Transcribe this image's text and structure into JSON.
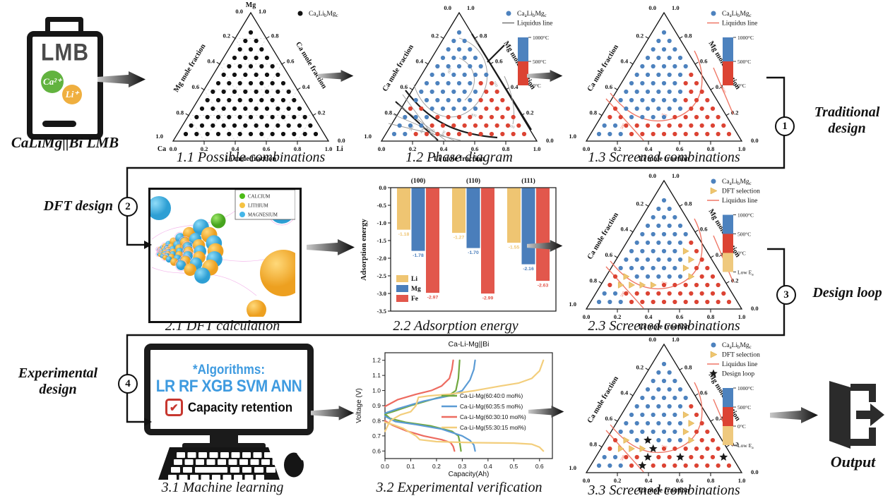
{
  "battery": {
    "label": "LMB",
    "ion1": "Ca²⁺",
    "ion2": "Li⁺",
    "ion1_color": "#62b33f",
    "ion2_color": "#efaf3f",
    "caption": "CaLiMg||Bi LMB"
  },
  "stages": {
    "traditional": {
      "num": "1",
      "title": "Traditional design"
    },
    "dft": {
      "num": "2",
      "title": "DFT design"
    },
    "loop": {
      "num": "3",
      "title": "Design loop"
    },
    "experimental": {
      "num": "4",
      "title": "Experimental design"
    },
    "output_label": "Output"
  },
  "dft_panel": {
    "caption": "2.1 DFT calculation",
    "legend": [
      {
        "label": "CALCIUM",
        "color": "#4cbb17"
      },
      {
        "label": "LITHIUM",
        "color": "#f5c242"
      },
      {
        "label": "MAGNESIUM",
        "color": "#45b6e8"
      }
    ]
  },
  "machine": {
    "caption": "3.1 Machine learning",
    "algorithms_title": "*Algorithms:",
    "algorithms": "LR RF XGB SVM ANN",
    "check_mark": "✔",
    "check_label": "Capacity retention"
  },
  "palette": {
    "K": "#111111",
    "B": "#4d82be",
    "R": "#dc4333",
    "Y": "#efc56f",
    "S": "#1a1a1a"
  },
  "chart_data": [
    {
      "id": "p11",
      "type": "ternary",
      "caption": "1.1 Possible combinations",
      "corner_top": "Mg",
      "corner_bl": "Ca",
      "corner_br": "Li",
      "left_axis": "Mg  mole fraction",
      "right_axis": "Ca  mole fraction",
      "bottom_axis": "Li  mole fraction",
      "apex_left": "0.0",
      "apex_right": "1.0",
      "left_ticks": [
        "0.2",
        "0.4",
        "0.6",
        "0.8"
      ],
      "left_bottom": "1.0",
      "right_ticks": [
        "0.8",
        "0.6",
        "0.4",
        "0.2"
      ],
      "right_bottom": "0.0",
      "bottom_ticks": [
        "0.0",
        "0.2",
        "0.4",
        "0.6",
        "0.8",
        "1.0"
      ],
      "grid": true,
      "legend": [
        {
          "marker": "dot",
          "color": "#111111",
          "label": "Ca_aLi_bMg_c"
        }
      ],
      "rows": [
        "K",
        "KK",
        "KKK",
        "KKKK",
        "KKKKK",
        "KKKKKK",
        "KKKKKKK",
        "KKKKKKKK",
        "KKKKKKKKK",
        "KKKKKKKKKK",
        "KKKKKKKKKKK",
        "KKKKKKKKKKKK",
        "KKKKKKKKKKKKK"
      ]
    },
    {
      "id": "p12",
      "type": "ternary",
      "caption": "1.2 Phase diagram",
      "left_axis": "Ca  mole fraction",
      "right_axis": "Mg  mole fraction",
      "bottom_axis": "Li  mole fraction",
      "apex_left": "0.0",
      "apex_right": "1.0",
      "left_ticks": [
        "0.2",
        "0.4",
        "0.6",
        "0.8"
      ],
      "left_bottom": "1.0",
      "right_ticks": [
        "0.8",
        "0.6",
        "0.4",
        "0.2"
      ],
      "right_bottom": "0.0",
      "bottom_ticks": [
        "0.0",
        "0.2",
        "0.4",
        "0.6",
        "0.8",
        "1.0"
      ],
      "legend": [
        {
          "marker": "dot",
          "color": "#4d82be",
          "label": "Ca_aLi_bMg_c"
        },
        {
          "marker": "line",
          "color": "#777777",
          "label": "Liquidus line"
        }
      ],
      "colorbar": {
        "segments": [
          "#4d82be",
          "#dc4333"
        ],
        "labels": [
          "1000°C",
          "500°C",
          "0°C"
        ]
      },
      "liquidus_color": "#999999",
      "liquidus_paths": [
        "M150,52 C196,66 202,122 168,152 C136,179 98,157 86,118",
        "M150,80 C176,92 178,122 158,140",
        "M214,106 C226,132 230,156 226,174",
        "M70,132 L118,197",
        "M63,146 L131,197",
        "M56,160 L143,197",
        "M50,173 L152,197"
      ],
      "black_paths": [
        "M168,46 L252,182",
        "M190,86 L214,62",
        "M74,126 C106,168 142,188 204,193",
        "M60,142 L120,197"
      ],
      "contour_labels": [
        {
          "t": "800",
          "x": 173,
          "y": 58,
          "r": 55
        },
        {
          "t": "600",
          "x": 138,
          "y": 98,
          "r": -80
        },
        {
          "t": "500",
          "x": 200,
          "y": 118,
          "r": 60
        },
        {
          "t": "400",
          "x": 170,
          "y": 163,
          "r": 15
        },
        {
          "t": "300",
          "x": 224,
          "y": 179,
          "r": 20
        },
        {
          "t": "300",
          "x": 84,
          "y": 181,
          "r": -62
        },
        {
          "t": "400",
          "x": 99,
          "y": 184,
          "r": -62
        },
        {
          "t": "500",
          "x": 114,
          "y": 186,
          "r": -62
        },
        {
          "t": "600",
          "x": 129,
          "y": 188,
          "r": -62
        }
      ],
      "rows": [
        "B",
        "BB",
        "BBB",
        "BBBB",
        "BBBBB",
        "BBBBBB",
        "BBBBBRR",
        "BBBBBBRR",
        "BBBBBBRRR",
        "RRBBBBBRRR",
        "BBBRRRRRRRR",
        "BBBRRRRRRRRR",
        "BBRRRRRRRRRRR"
      ]
    },
    {
      "id": "p13",
      "type": "ternary",
      "caption": "1.3 Screened combinations",
      "left_axis": "Ca  mole fraction",
      "right_axis": "Mg  mole fraction",
      "bottom_axis": "Li  mole fraction",
      "apex_left": "0.0",
      "apex_right": "1.0",
      "left_ticks": [
        "0.2",
        "0.4",
        "0.6",
        "0.8"
      ],
      "left_bottom": "1.0",
      "right_ticks": [
        "0.8",
        "0.6",
        "0.4",
        "0.2"
      ],
      "right_bottom": "0.0",
      "bottom_ticks": [
        "0.0",
        "0.2",
        "0.4",
        "0.6",
        "0.8",
        "1.0"
      ],
      "legend": [
        {
          "marker": "dot",
          "color": "#4d82be",
          "label": "Ca_aLi_bMg_c"
        },
        {
          "marker": "line",
          "color": "#ef7766",
          "label": "Liquidus line"
        }
      ],
      "colorbar": {
        "segments": [
          "#4d82be",
          "#dc4333"
        ],
        "labels": [
          "1000°C",
          "500°C",
          "0°C"
        ]
      },
      "liquidus_color": "#ef7766",
      "liquidus_paths": [
        "M193,70 C212,106 208,150 166,165 C126,179 96,158 74,130",
        "M220,94 L248,160",
        "M68,138 L121,197"
      ],
      "contour_labels": [
        {
          "t": "500",
          "x": 233,
          "y": 127,
          "r": 65
        },
        {
          "t": "500",
          "x": 150,
          "y": 163,
          "r": 10
        },
        {
          "t": "500",
          "x": 93,
          "y": 178,
          "r": -62
        }
      ],
      "rows": [
        "B",
        "BB",
        "BBB",
        "BBBB",
        "BBBBB",
        "BBBBBR",
        "BBBBBRR",
        "BBBBBBRR",
        "BBBBBBRRR",
        "RBBBBBBRRR",
        "RRBBBBRRRRR",
        "BBRRRRRRRRRR",
        "BBBRRRRRRRRRR"
      ]
    },
    {
      "id": "p22",
      "type": "bar",
      "caption": "2.2 Adsorption energy",
      "ylabel": "Adsorption energy",
      "ylim": [
        0,
        -3.5
      ],
      "yticks": [
        "0.0",
        "-0.5",
        "-1.0",
        "-1.5",
        "-2.0",
        "-2.5",
        "-3.0",
        "-3.5"
      ],
      "groups": [
        "(100)",
        "(110)",
        "(111)"
      ],
      "series": [
        {
          "name": "Li",
          "color": "#efc572",
          "values": [
            -1.18,
            -1.27,
            -1.55
          ]
        },
        {
          "name": "Mg",
          "color": "#4a7ebb",
          "values": [
            -1.78,
            -1.7,
            -2.16
          ]
        },
        {
          "name": "Fe",
          "color": "#e2574c",
          "values": [
            -2.97,
            -2.99,
            -2.63
          ]
        }
      ]
    },
    {
      "id": "p23",
      "type": "ternary",
      "caption": "2.3 Screened combinations",
      "left_axis": "Ca  mole fraction",
      "right_axis": "Mg  mole fraction",
      "bottom_axis": "Li  mole fraction",
      "apex_left": "0.0",
      "apex_right": "1.0",
      "left_ticks": [
        "0.2",
        "0.4",
        "0.6",
        "0.8"
      ],
      "left_bottom": "1.0",
      "right_ticks": [
        "0.8",
        "0.6",
        "0.4",
        "0.2"
      ],
      "right_bottom": "0.0",
      "bottom_ticks": [
        "0.0",
        "0.2",
        "0.4",
        "0.6",
        "0.8",
        "1.0"
      ],
      "legend": [
        {
          "marker": "dot",
          "color": "#4d82be",
          "label": "Ca_aLi_bMg_c"
        },
        {
          "marker": "tri",
          "color": "#efc56f",
          "label": "DFT selection"
        },
        {
          "marker": "line",
          "color": "#ef7766",
          "label": "Liquidus line"
        }
      ],
      "colorbar": {
        "segments": [
          "#4d82be",
          "#dc4333",
          "#efc97e"
        ],
        "labels": [
          "1000°C",
          "500°C",
          "0°C",
          "Low E_a"
        ]
      },
      "liquidus_color": "#ef7766",
      "liquidus_paths": [
        "M193,70 C212,106 208,150 166,165 C126,179 96,158 74,130",
        "M220,94 L248,160",
        "M68,138 L121,197"
      ],
      "contour_labels": [
        {
          "t": "500",
          "x": 233,
          "y": 127,
          "r": 65
        },
        {
          "t": "500",
          "x": 150,
          "y": 163,
          "r": 10
        },
        {
          "t": "500",
          "x": 93,
          "y": 178,
          "r": -62
        }
      ],
      "rows": [
        "B",
        "BB",
        "BBB",
        "BBBB",
        "BBBBB",
        "BBBBBR",
        "BBBBBYR",
        "BBBBBBYR",
        "BBBBBBYRR",
        "RYBBBBBYRR",
        "RYYYYRRRRRR",
        "BBRRRRRRRRRR",
        "BBBRRRRRRRRRR"
      ]
    },
    {
      "id": "p32",
      "type": "line",
      "caption": "3.2 Experimental verification",
      "title": "Ca-Li-Mg||Bi",
      "xlabel": "Capacity(Ah)",
      "ylabel": "Voltage (V)",
      "xlim": [
        0,
        0.65
      ],
      "ylim": [
        0.55,
        1.25
      ],
      "xticks": [
        "0.0",
        "0.1",
        "0.2",
        "0.3",
        "0.4",
        "0.5",
        "0.6"
      ],
      "yticks": [
        "0.6",
        "0.7",
        "0.8",
        "0.9",
        "1.0",
        "1.1",
        "1.2"
      ],
      "series": [
        {
          "name": "Ca-Li-Mg(60:40:0 mol%)",
          "color": "#71a83f",
          "charge": [
            [
              0,
              0.845
            ],
            [
              0.03,
              0.86
            ],
            [
              0.1,
              0.9
            ],
            [
              0.2,
              0.95
            ],
            [
              0.25,
              0.97
            ],
            [
              0.275,
              1.0
            ],
            [
              0.285,
              1.08
            ],
            [
              0.29,
              1.2
            ]
          ],
          "discharge": [
            [
              0,
              0.845
            ],
            [
              0.02,
              0.815
            ],
            [
              0.08,
              0.79
            ],
            [
              0.18,
              0.765
            ],
            [
              0.26,
              0.73
            ],
            [
              0.285,
              0.7
            ],
            [
              0.29,
              0.66
            ],
            [
              0.295,
              0.6
            ]
          ]
        },
        {
          "name": "Ca-Li-Mg(60:35:5 mol%)",
          "color": "#5b9bd5",
          "charge": [
            [
              0,
              0.85
            ],
            [
              0.05,
              0.88
            ],
            [
              0.15,
              0.93
            ],
            [
              0.25,
              0.965
            ],
            [
              0.3,
              1.0
            ],
            [
              0.33,
              1.07
            ],
            [
              0.345,
              1.14
            ],
            [
              0.35,
              1.2
            ]
          ],
          "discharge": [
            [
              0,
              0.83
            ],
            [
              0.04,
              0.795
            ],
            [
              0.12,
              0.775
            ],
            [
              0.22,
              0.745
            ],
            [
              0.3,
              0.7
            ],
            [
              0.33,
              0.67
            ],
            [
              0.345,
              0.64
            ],
            [
              0.35,
              0.6
            ]
          ]
        },
        {
          "name": "Ca-Li-Mg(60:30:10 mol%)",
          "color": "#ed6b60",
          "charge": [
            [
              0,
              0.895
            ],
            [
              0.05,
              0.94
            ],
            [
              0.12,
              0.975
            ],
            [
              0.18,
              1.0
            ],
            [
              0.22,
              1.03
            ],
            [
              0.25,
              1.08
            ],
            [
              0.26,
              1.14
            ],
            [
              0.265,
              1.2
            ]
          ],
          "discharge": [
            [
              0,
              0.8
            ],
            [
              0.03,
              0.77
            ],
            [
              0.08,
              0.735
            ],
            [
              0.15,
              0.7
            ],
            [
              0.22,
              0.675
            ],
            [
              0.255,
              0.655
            ],
            [
              0.265,
              0.63
            ],
            [
              0.27,
              0.6
            ]
          ]
        },
        {
          "name": "Ca-Li-Mg(55:30:15 mol%)",
          "color": "#f3ce7c",
          "charge": [
            [
              0,
              0.73
            ],
            [
              0.02,
              0.8
            ],
            [
              0.06,
              0.84
            ],
            [
              0.1,
              0.86
            ],
            [
              0.12,
              0.9
            ],
            [
              0.13,
              0.955
            ],
            [
              0.17,
              0.965
            ],
            [
              0.25,
              0.975
            ],
            [
              0.35,
              1.0
            ],
            [
              0.45,
              1.03
            ],
            [
              0.52,
              1.05
            ],
            [
              0.57,
              1.08
            ],
            [
              0.6,
              1.13
            ],
            [
              0.615,
              1.2
            ]
          ],
          "discharge": [
            [
              0,
              0.79
            ],
            [
              0.03,
              0.775
            ],
            [
              0.07,
              0.75
            ],
            [
              0.1,
              0.72
            ],
            [
              0.12,
              0.7
            ],
            [
              0.135,
              0.675
            ],
            [
              0.2,
              0.662
            ],
            [
              0.35,
              0.655
            ],
            [
              0.5,
              0.652
            ],
            [
              0.57,
              0.645
            ],
            [
              0.6,
              0.625
            ],
            [
              0.615,
              0.6
            ]
          ]
        }
      ]
    },
    {
      "id": "p33",
      "type": "ternary",
      "caption": "3.3 Screened combinations",
      "left_axis": "Ca  mole fraction",
      "right_axis": "Mg  mole fraction",
      "bottom_axis": "Li  mole fraction",
      "apex_left": "0.0",
      "apex_right": "1.0",
      "left_ticks": [
        "0.2",
        "0.4",
        "0.6",
        "0.8"
      ],
      "left_bottom": "1.0",
      "right_ticks": [
        "0.8",
        "0.6",
        "0.4",
        "0.2"
      ],
      "right_bottom": "0.0",
      "bottom_ticks": [
        "0.0",
        "0.2",
        "0.4",
        "0.6",
        "0.8",
        "1.0"
      ],
      "legend": [
        {
          "marker": "dot",
          "color": "#4d82be",
          "label": "Ca_aLi_bMg_c"
        },
        {
          "marker": "tri",
          "color": "#efc56f",
          "label": "DFT selection"
        },
        {
          "marker": "line",
          "color": "#ef7766",
          "label": "Liquidus line"
        },
        {
          "marker": "star",
          "color": "#1a1a1a",
          "label": "Design loop"
        }
      ],
      "colorbar": {
        "segments": [
          "#4d82be",
          "#dc4333",
          "#efc97e"
        ],
        "labels": [
          "1000°C",
          "500°C",
          "0°C",
          "Low E_a"
        ]
      },
      "liquidus_color": "#ef7766",
      "liquidus_paths": [
        "M193,70 C212,106 208,150 166,165 C126,179 96,158 74,130",
        "M220,94 L248,160",
        "M68,138 L121,197"
      ],
      "contour_labels": [
        {
          "t": "500",
          "x": 233,
          "y": 127,
          "r": 65
        },
        {
          "t": "500",
          "x": 150,
          "y": 163,
          "r": 10
        },
        {
          "t": "500",
          "x": 93,
          "y": 178,
          "r": -62
        }
      ],
      "rows": [
        "B",
        "BB",
        "BBB",
        "BBBB",
        "BBBBB",
        "BBBBBR",
        "BBBBBYR",
        "BBBBBBYR",
        "BBBBBBYRR",
        "RYBSBBBYRR",
        "RYYYSRRRRRR",
        "BBRRSRRSRRRS",
        "BBBRSRRRRRRRR"
      ]
    }
  ]
}
